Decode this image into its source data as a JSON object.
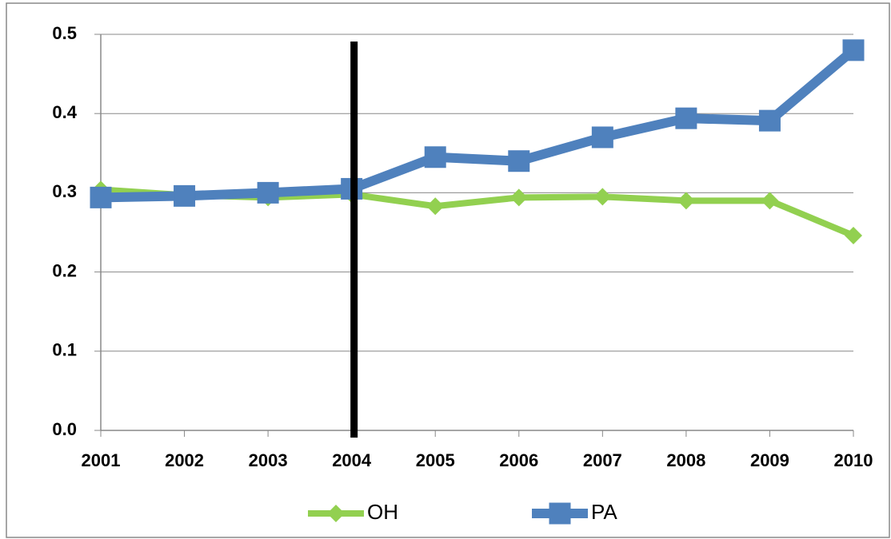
{
  "chart_data": {
    "type": "line",
    "categories": [
      "2001",
      "2002",
      "2003",
      "2004",
      "2005",
      "2006",
      "2007",
      "2008",
      "2009",
      "2010"
    ],
    "series": [
      {
        "name": "OH",
        "color": "#92d050",
        "marker": "diamond",
        "values": [
          0.304,
          0.297,
          0.294,
          0.298,
          0.283,
          0.294,
          0.295,
          0.29,
          0.29,
          0.246
        ]
      },
      {
        "name": "PA",
        "color": "#4f81bd",
        "marker": "square",
        "values": [
          0.294,
          0.296,
          0.3,
          0.305,
          0.345,
          0.34,
          0.37,
          0.394,
          0.391,
          0.48
        ]
      }
    ],
    "ylim": [
      0,
      0.5
    ],
    "yticks": [
      {
        "value": 0,
        "label": "0.0"
      },
      0.1,
      0.2,
      0.3,
      0.4,
      0.5
    ],
    "grid": true,
    "vline": "2004",
    "legend": "bottom"
  }
}
